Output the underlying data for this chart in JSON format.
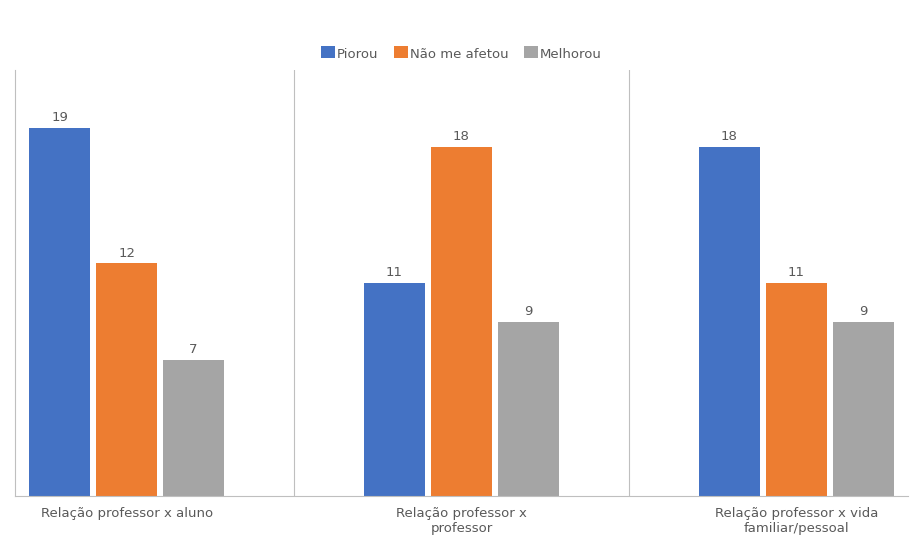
{
  "categories": [
    "Relação professor x aluno",
    "Relação professor x\nprofessor",
    "Relação professor x vida\nfamiliar/pessoal"
  ],
  "series": {
    "Piorou": [
      19,
      11,
      18
    ],
    "Não me afetou": [
      12,
      18,
      11
    ],
    "Melhorou": [
      7,
      9,
      9
    ]
  },
  "colors": {
    "Piorou": "#4472C4",
    "Não me afetou": "#ED7D31",
    "Melhorou": "#A5A5A5"
  },
  "ylim": [
    0,
    22
  ],
  "bar_width": 0.55,
  "legend_labels": [
    "Piorou",
    "Não me afetou",
    "Melhorou"
  ],
  "background_color": "#FFFFFF",
  "plot_bg_color": "#F2F2F2",
  "label_fontsize": 9.5,
  "tick_fontsize": 9.5,
  "legend_fontsize": 9.5,
  "label_color": "#595959",
  "spine_color": "#BFBFBF",
  "divider_color": "#BFBFBF"
}
